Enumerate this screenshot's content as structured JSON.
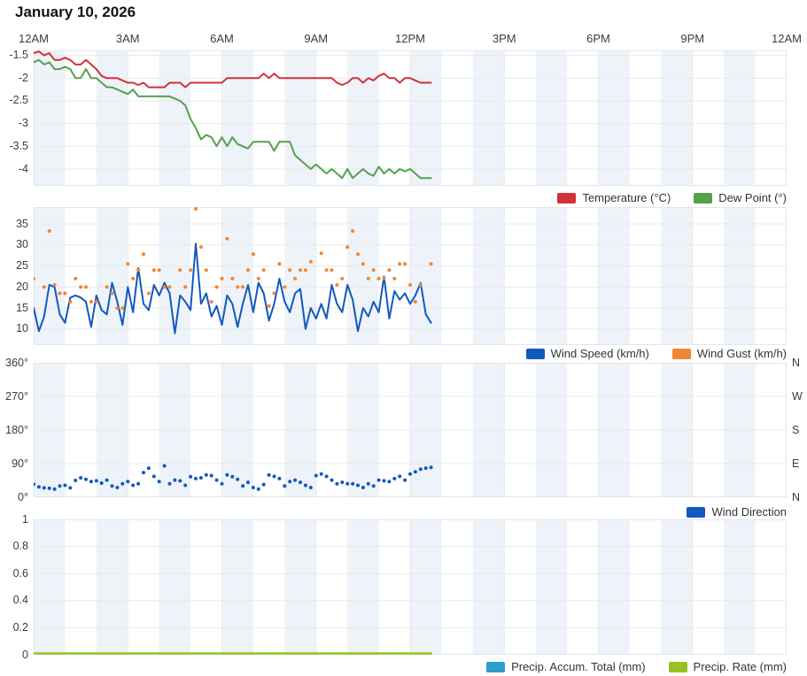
{
  "page": {
    "title": "January 10, 2026"
  },
  "x_axis": {
    "labels": [
      "12AM",
      "3AM",
      "6AM",
      "9AM",
      "12PM",
      "3PM",
      "6PM",
      "9PM",
      "12AM"
    ],
    "hours": [
      0,
      3,
      6,
      9,
      12,
      15,
      18,
      21,
      24
    ]
  },
  "colors": {
    "temperature": "#d13239",
    "dew_point": "#55a14e",
    "wind_speed": "#1259be",
    "wind_gust": "#ef8633",
    "wind_direction": "#1259be",
    "precip_accum": "#2b9fd0",
    "precip_rate": "#95c322",
    "band": "#edf3f9",
    "grid": "#e9e9e9",
    "border": "#e2e6ea",
    "axis_text": "#3c3c3c",
    "title_text": "#141414"
  },
  "sample_interval_minutes": 10,
  "chart_data": [
    {
      "type": "line",
      "id": "temperature",
      "ylim": [
        -4.37,
        -1.39
      ],
      "yticks": [
        {
          "label": "-1.5",
          "value": -1.5
        },
        {
          "label": "-2",
          "value": -2
        },
        {
          "label": "-2.5",
          "value": -2.5
        },
        {
          "label": "-3",
          "value": -3
        },
        {
          "label": "-3.5",
          "value": -3.5
        },
        {
          "label": "-4",
          "value": -4
        }
      ],
      "legend": [
        {
          "label": "Temperature (°C)",
          "color": "temperature"
        },
        {
          "label": "Dew Point (°)",
          "color": "dew_point"
        }
      ],
      "series": [
        {
          "id": "temperature",
          "name": "Temperature (°C)",
          "style": "line",
          "color": "temperature",
          "values": [
            -1.45,
            -1.4,
            -1.5,
            -1.45,
            -1.6,
            -1.6,
            -1.55,
            -1.6,
            -1.7,
            -1.7,
            -1.6,
            -1.7,
            -1.8,
            -1.95,
            -2,
            -2,
            -2,
            -2.05,
            -2.1,
            -2.1,
            -2.15,
            -2.1,
            -2.2,
            -2.2,
            -2.2,
            -2.2,
            -2.1,
            -2.1,
            -2.1,
            -2.2,
            -2.1,
            -2.1,
            -2.1,
            -2.1,
            -2.1,
            -2.1,
            -2.1,
            -2,
            -2,
            -2,
            -2,
            -2,
            -2,
            -2,
            -1.9,
            -2,
            -1.9,
            -2,
            -2,
            -2,
            -2,
            -2,
            -2,
            -2,
            -2,
            -2,
            -2,
            -2,
            -2.1,
            -2.15,
            -2.1,
            -2,
            -2,
            -2.1,
            -2,
            -2.05,
            -1.95,
            -1.9,
            -2,
            -2,
            -2.1,
            -2,
            -2,
            -2.05,
            -2.1,
            -2.1,
            -2.1
          ]
        },
        {
          "id": "dew-point",
          "name": "Dew Point (°)",
          "style": "line",
          "color": "dew_point",
          "values": [
            -1.65,
            -1.6,
            -1.7,
            -1.65,
            -1.8,
            -1.8,
            -1.75,
            -1.8,
            -2,
            -2,
            -1.8,
            -2,
            -2,
            -2.1,
            -2.2,
            -2.2,
            -2.25,
            -2.3,
            -2.35,
            -2.25,
            -2.4,
            -2.4,
            -2.4,
            -2.4,
            -2.4,
            -2.4,
            -2.4,
            -2.45,
            -2.5,
            -2.6,
            -2.9,
            -3.1,
            -3.35,
            -3.25,
            -3.3,
            -3.5,
            -3.3,
            -3.5,
            -3.3,
            -3.45,
            -3.5,
            -3.55,
            -3.4,
            -3.4,
            -3.4,
            -3.4,
            -3.6,
            -3.4,
            -3.4,
            -3.4,
            -3.7,
            -3.8,
            -3.9,
            -4,
            -3.9,
            -4,
            -4.1,
            -4,
            -4.1,
            -4.2,
            -4,
            -4.2,
            -4.1,
            -4,
            -4.1,
            -4.15,
            -3.95,
            -4.1,
            -4,
            -4.1,
            -4,
            -4.05,
            -4,
            -4.1,
            -4.2,
            -4.2,
            -4.2
          ]
        }
      ]
    },
    {
      "type": "line",
      "id": "wind-speed",
      "ylim": [
        6.2,
        39
      ],
      "yticks": [
        {
          "label": "35",
          "value": 35
        },
        {
          "label": "30",
          "value": 30
        },
        {
          "label": "25",
          "value": 25
        },
        {
          "label": "20",
          "value": 20
        },
        {
          "label": "15",
          "value": 15
        },
        {
          "label": "10",
          "value": 10
        }
      ],
      "legend": [
        {
          "label": "Wind Speed (km/h)",
          "color": "wind_speed"
        },
        {
          "label": "Wind Gust (km/h)",
          "color": "wind_gust"
        }
      ],
      "series": [
        {
          "id": "wind-speed",
          "name": "Wind Speed (km/h)",
          "style": "line",
          "color": "wind_speed",
          "values": [
            15,
            9.5,
            13,
            20.5,
            20,
            13.5,
            11.5,
            17.5,
            18,
            17.5,
            16.5,
            10.5,
            18,
            14.5,
            13.5,
            21,
            16.5,
            11,
            20,
            14,
            24.5,
            16,
            14.5,
            20.5,
            18,
            21,
            18.5,
            9,
            18,
            16.5,
            14.5,
            30.3,
            16,
            18.5,
            13,
            15.5,
            11,
            18,
            16,
            10.5,
            16,
            20.5,
            14,
            21,
            18.5,
            12,
            16,
            22,
            16.5,
            14,
            18.5,
            19.5,
            10,
            15,
            12.5,
            16,
            12.5,
            20.5,
            16,
            14,
            20.5,
            17,
            9.5,
            15,
            13,
            16.5,
            14,
            22.5,
            12.5,
            19,
            17,
            18.5,
            16,
            18,
            21,
            13.5,
            11.5
          ]
        },
        {
          "id": "wind-gust",
          "name": "Wind Gust (km/h)",
          "style": "dots",
          "color": "wind_gust",
          "values": [
            22,
            null,
            20,
            33.3,
            20.5,
            18.5,
            18.5,
            16.5,
            22,
            20,
            20,
            16.5,
            16.5,
            null,
            20,
            18.5,
            15,
            15,
            25.5,
            22,
            24,
            27.8,
            18.5,
            24,
            24,
            20,
            20,
            null,
            24,
            20,
            24,
            38.8,
            29.5,
            24,
            16.5,
            20,
            22,
            31.5,
            22,
            20,
            20,
            24,
            27.8,
            22,
            24,
            15.5,
            18.5,
            25.5,
            20,
            24,
            22,
            24,
            24,
            26,
            null,
            28,
            24,
            24,
            20.5,
            22,
            29.5,
            33.3,
            27.8,
            25.5,
            22,
            24,
            22,
            22,
            24,
            22,
            25.5,
            25.5,
            20.5,
            16.5,
            20.5,
            null,
            25.5
          ]
        }
      ]
    },
    {
      "type": "scatter",
      "id": "wind-direction",
      "ylim": [
        0,
        360
      ],
      "yticks": [
        {
          "label": "360°",
          "value": 360,
          "right_label": "N"
        },
        {
          "label": "270°",
          "value": 270,
          "right_label": "W"
        },
        {
          "label": "180°",
          "value": 180,
          "right_label": "S"
        },
        {
          "label": "90°",
          "value": 90,
          "right_label": "E"
        },
        {
          "label": "0°",
          "value": 0,
          "right_label": "N"
        }
      ],
      "legend": [
        {
          "label": "Wind Direction",
          "color": "wind_direction"
        }
      ],
      "series": [
        {
          "id": "wind-direction",
          "name": "Wind Direction",
          "style": "dots",
          "color": "wind_direction",
          "values": [
            35,
            28,
            25,
            24,
            22,
            30,
            32,
            25,
            45,
            52,
            48,
            42,
            44,
            38,
            46,
            30,
            26,
            36,
            42,
            32,
            36,
            66,
            78,
            56,
            42,
            84,
            36,
            46,
            44,
            32,
            55,
            50,
            52,
            60,
            58,
            46,
            36,
            60,
            55,
            48,
            30,
            40,
            26,
            22,
            34,
            60,
            56,
            50,
            30,
            42,
            46,
            40,
            32,
            26,
            58,
            62,
            56,
            46,
            36,
            40,
            36,
            36,
            32,
            26,
            36,
            30,
            46,
            44,
            42,
            50,
            56,
            46,
            62,
            68,
            75,
            78,
            80
          ]
        }
      ]
    },
    {
      "type": "line",
      "id": "precipitation",
      "ylim": [
        0,
        1
      ],
      "yticks": [
        {
          "label": "1",
          "value": 1
        },
        {
          "label": "0.8",
          "value": 0.8
        },
        {
          "label": "0.6",
          "value": 0.6
        },
        {
          "label": "0.4",
          "value": 0.4
        },
        {
          "label": "0.2",
          "value": 0.2
        },
        {
          "label": "0",
          "value": 0
        }
      ],
      "legend": [
        {
          "label": "Precip. Accum. Total (mm)",
          "color": "precip_accum"
        },
        {
          "label": "Precip. Rate (mm)",
          "color": "precip_rate"
        }
      ],
      "series": [
        {
          "id": "precip-accum-total",
          "name": "Precip. Accum. Total (mm)",
          "style": "line",
          "color": "precip_accum",
          "values_const": 0,
          "n": 77
        },
        {
          "id": "precip-rate",
          "name": "Precip. Rate (mm)",
          "style": "line",
          "color": "precip_rate",
          "thick": true,
          "values_const": 0,
          "n": 77
        }
      ]
    }
  ]
}
